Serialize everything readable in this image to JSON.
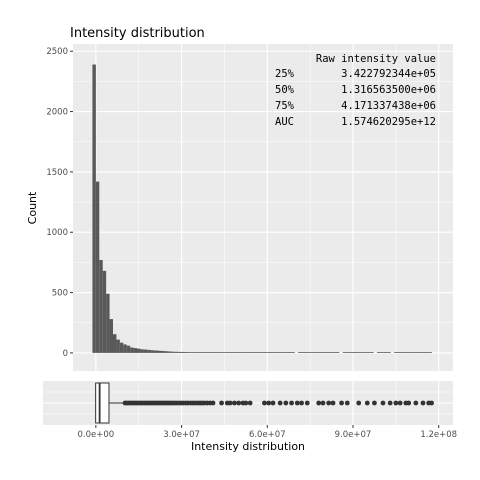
{
  "chart_data": [
    {
      "type": "bar",
      "title": "Intensity distribution",
      "xlabel": "",
      "ylabel": "Count",
      "xlim": [
        -8000000,
        125000000
      ],
      "ylim": [
        -150,
        2560
      ],
      "yticks": [
        0,
        500,
        1000,
        1500,
        2000,
        2500
      ],
      "yticklabels": [
        "0",
        "500",
        "1000",
        "1500",
        "2000",
        "2500"
      ],
      "bin_width": 1200000,
      "bin_starts": [
        -1200000,
        0,
        1200000,
        2400000,
        3600000,
        4800000,
        6000000,
        7200000,
        8400000,
        9600000,
        10800000,
        12000000,
        13200000,
        14400000,
        15600000,
        16800000,
        18000000,
        19200000,
        20400000,
        21600000,
        22800000,
        24000000,
        25200000,
        26400000,
        27600000,
        28800000,
        30000000,
        31200000,
        32400000,
        33600000,
        34800000,
        36000000,
        37200000,
        38400000,
        39600000,
        40800000,
        42000000,
        43200000,
        44400000,
        45600000,
        46800000,
        48000000,
        49200000,
        50400000,
        51600000,
        52800000,
        54000000,
        55200000,
        56400000,
        57600000,
        58800000,
        60000000,
        61200000,
        62400000,
        63600000,
        64800000,
        66000000,
        67200000,
        68400000,
        69600000,
        70800000,
        72000000,
        73200000,
        74400000,
        75600000,
        76800000,
        78000000,
        79200000,
        80400000,
        81600000,
        82800000,
        84000000,
        85200000,
        86400000,
        87600000,
        88800000,
        90000000,
        91200000,
        92400000,
        93600000,
        94800000,
        96000000,
        97200000,
        98400000,
        99600000,
        100800000,
        102000000,
        103200000,
        104400000,
        105600000,
        106800000,
        108000000,
        109200000,
        110400000,
        111600000,
        112800000,
        114000000,
        115200000,
        116400000
      ],
      "values": [
        2390,
        1420,
        770,
        680,
        490,
        280,
        155,
        110,
        85,
        70,
        60,
        45,
        40,
        35,
        30,
        28,
        25,
        22,
        20,
        18,
        16,
        14,
        12,
        10,
        9,
        8,
        8,
        7,
        6,
        5,
        5,
        4,
        4,
        3,
        3,
        3,
        2,
        2,
        2,
        2,
        3,
        2,
        2,
        2,
        2,
        3,
        2,
        2,
        2,
        2,
        1,
        1,
        2,
        1,
        2,
        1,
        1,
        1,
        2,
        0,
        2,
        1,
        2,
        2,
        1,
        1,
        2,
        2,
        1,
        1,
        1,
        1,
        0,
        1,
        1,
        2,
        1,
        1,
        1,
        1,
        1,
        1,
        0,
        1,
        1,
        1,
        1,
        0,
        1,
        1,
        1,
        1,
        1,
        1,
        1,
        1,
        1,
        1,
        1,
        1
      ],
      "color": "#595959",
      "summary_table": {
        "header_label": "",
        "header_value": "Raw intensity value",
        "rows": [
          {
            "label": "25%",
            "value": "3.422792344e+05"
          },
          {
            "label": "50%",
            "value": "1.316563500e+06"
          },
          {
            "label": "75%",
            "value": "4.171337438e+06"
          },
          {
            "label": "AUC",
            "value": "1.574620295e+12"
          }
        ]
      }
    },
    {
      "type": "boxplot",
      "xlabel": "Intensity distribution",
      "ylabel": "",
      "xlim": [
        -8000000,
        125000000
      ],
      "xticks": [
        0,
        30000000,
        60000000,
        90000000,
        120000000
      ],
      "xticklabels": [
        "0.0e+00",
        "3.0e+07",
        "6.0e+07",
        "9.0e+07",
        "1.2e+08"
      ],
      "box": {
        "q1": 342279.2344,
        "median": 1316563.5,
        "q3": 4171337.438,
        "whisker_low": 0,
        "whisker_high": 9900000
      },
      "outliers": [
        10200000,
        10700000,
        11300000,
        11900000,
        12600000,
        13200000,
        13900000,
        14500000,
        15200000,
        15800000,
        16400000,
        17100000,
        17700000,
        18400000,
        19000000,
        19700000,
        20300000,
        21000000,
        21600000,
        22300000,
        22900000,
        23500000,
        24200000,
        24800000,
        25500000,
        26100000,
        26800000,
        27500000,
        28200000,
        29000000,
        29800000,
        30600000,
        31500000,
        32300000,
        33200000,
        34000000,
        34800000,
        35700000,
        36500000,
        37200000,
        38000000,
        39000000,
        40000000,
        41000000,
        44000000,
        46000000,
        47000000,
        48500000,
        50000000,
        51500000,
        52500000,
        54000000,
        59000000,
        60500000,
        62000000,
        64500000,
        66500000,
        68500000,
        70500000,
        72000000,
        74000000,
        78000000,
        79500000,
        81500000,
        83000000,
        86000000,
        88000000,
        92000000,
        95000000,
        97500000,
        100500000,
        103000000,
        105000000,
        106500000,
        108500000,
        109500000,
        112000000,
        114500000,
        116500000,
        117500000
      ]
    }
  ]
}
